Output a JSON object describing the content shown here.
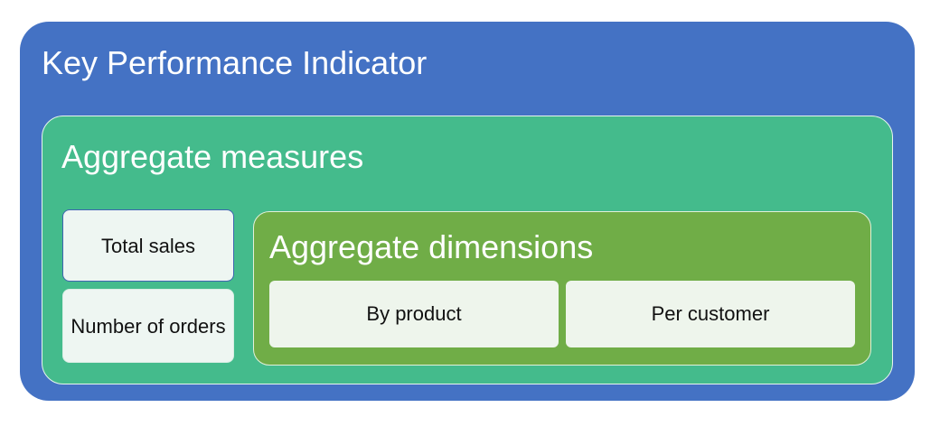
{
  "kpi": {
    "title": "Key Performance Indicator"
  },
  "measures": {
    "title": "Aggregate measures",
    "items": [
      {
        "label": "Total sales"
      },
      {
        "label": "Number of orders"
      }
    ]
  },
  "dimensions": {
    "title": "Aggregate dimensions",
    "items": [
      {
        "label": "By product"
      },
      {
        "label": "Per customer"
      }
    ]
  },
  "colors": {
    "kpi": "#4472c4",
    "measures": "#44bb8c",
    "dimensions": "#70ad47",
    "box": "#eef6f2"
  }
}
